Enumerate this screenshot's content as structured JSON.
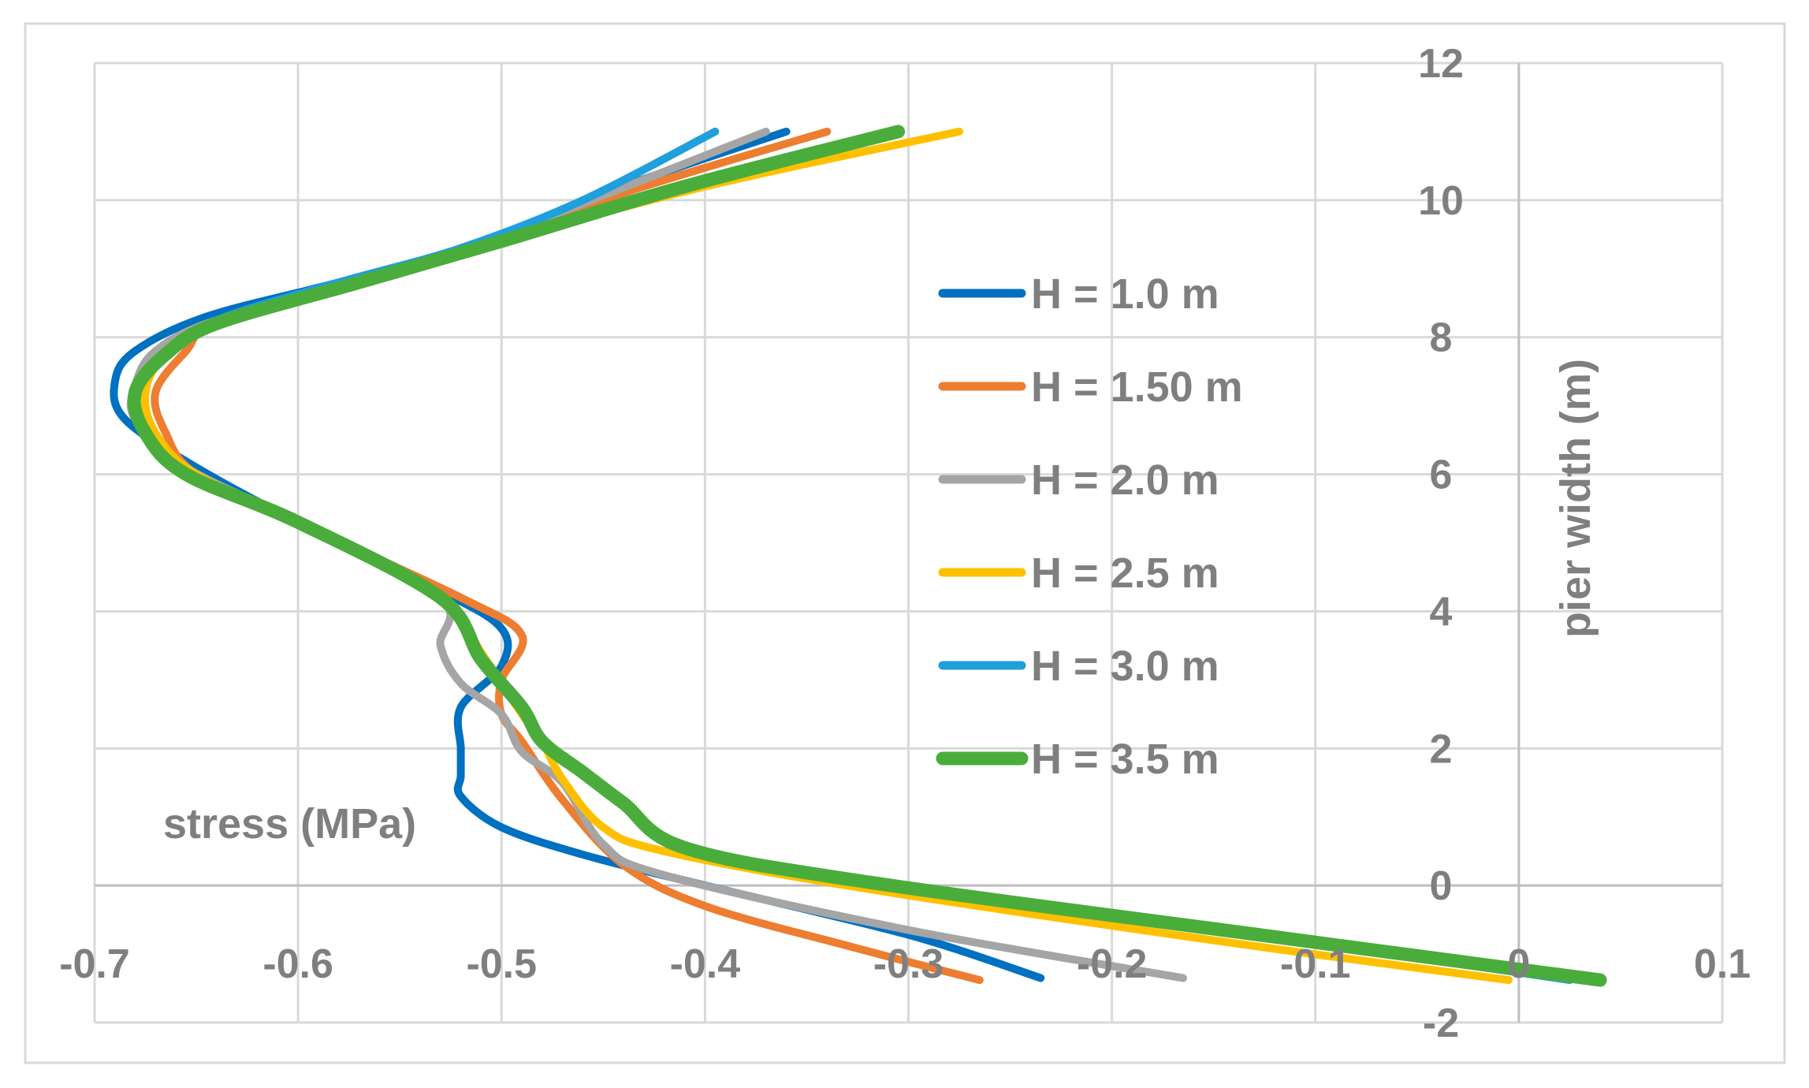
{
  "chart_data": {
    "type": "line",
    "title": "",
    "xlabel": "stress (MPa)",
    "ylabel": "pier width (m)",
    "xlim": [
      -0.7,
      0.1
    ],
    "ylim": [
      -2,
      12
    ],
    "x_ticks": [
      "-0.7",
      "-0.6",
      "-0.5",
      "-0.4",
      "-0.3",
      "-0.2",
      "-0.1",
      "0",
      "0.1"
    ],
    "y_ticks": [
      "-2",
      "0",
      "2",
      "4",
      "6",
      "8",
      "10",
      "12"
    ],
    "grid": true,
    "legend_position": "right",
    "series": [
      {
        "name": "H = 1.0 m",
        "color": "#0070c0",
        "points": [
          [
            -0.235,
            -1.35
          ],
          [
            -0.3,
            -0.72
          ],
          [
            -0.4,
            0.0
          ],
          [
            -0.46,
            0.45
          ],
          [
            -0.5,
            0.85
          ],
          [
            -0.52,
            1.3
          ],
          [
            -0.52,
            1.6
          ],
          [
            -0.52,
            2.0
          ],
          [
            -0.52,
            2.6
          ],
          [
            -0.5,
            3.2
          ],
          [
            -0.5,
            3.75
          ],
          [
            -0.53,
            4.3
          ],
          [
            -0.6,
            5.3
          ],
          [
            -0.65,
            6.1
          ],
          [
            -0.685,
            6.8
          ],
          [
            -0.69,
            7.35
          ],
          [
            -0.68,
            7.8
          ],
          [
            -0.645,
            8.3
          ],
          [
            -0.58,
            8.8
          ],
          [
            -0.5,
            9.45
          ],
          [
            -0.44,
            10.2
          ],
          [
            -0.36,
            11.0
          ]
        ]
      },
      {
        "name": "H = 1.50 m",
        "color": "#ed7d31",
        "points": [
          [
            -0.265,
            -1.38
          ],
          [
            -0.33,
            -0.88
          ],
          [
            -0.4,
            -0.3
          ],
          [
            -0.44,
            0.3
          ],
          [
            -0.47,
            1.25
          ],
          [
            -0.49,
            2.1
          ],
          [
            -0.5,
            2.5
          ],
          [
            -0.5,
            3.0
          ],
          [
            -0.49,
            3.65
          ],
          [
            -0.52,
            4.2
          ],
          [
            -0.6,
            5.3
          ],
          [
            -0.65,
            6.0
          ],
          [
            -0.665,
            6.6
          ],
          [
            -0.67,
            7.2
          ],
          [
            -0.655,
            7.8
          ],
          [
            -0.64,
            8.2
          ],
          [
            -0.57,
            8.8
          ],
          [
            -0.5,
            9.5
          ],
          [
            -0.43,
            10.2
          ],
          [
            -0.34,
            11.0
          ]
        ]
      },
      {
        "name": "H = 2.0 m",
        "color": "#a5a5a5",
        "points": [
          [
            -0.165,
            -1.35
          ],
          [
            -0.3,
            -0.65
          ],
          [
            -0.42,
            0.15
          ],
          [
            -0.45,
            0.6
          ],
          [
            -0.47,
            1.5
          ],
          [
            -0.49,
            1.95
          ],
          [
            -0.5,
            2.5
          ],
          [
            -0.52,
            2.95
          ],
          [
            -0.53,
            3.5
          ],
          [
            -0.53,
            4.2
          ],
          [
            -0.6,
            5.3
          ],
          [
            -0.655,
            6.1
          ],
          [
            -0.68,
            6.8
          ],
          [
            -0.68,
            7.3
          ],
          [
            -0.67,
            7.8
          ],
          [
            -0.64,
            8.25
          ],
          [
            -0.57,
            8.8
          ],
          [
            -0.5,
            9.5
          ],
          [
            -0.43,
            10.3
          ],
          [
            -0.37,
            11.0
          ]
        ]
      },
      {
        "name": "H = 2.5 m",
        "color": "#ffc000",
        "points": [
          [
            -0.005,
            -1.38
          ],
          [
            -0.15,
            -0.8
          ],
          [
            -0.32,
            -0.05
          ],
          [
            -0.42,
            0.5
          ],
          [
            -0.45,
            0.85
          ],
          [
            -0.47,
            1.55
          ],
          [
            -0.48,
            2.1
          ],
          [
            -0.49,
            2.5
          ],
          [
            -0.51,
            3.4
          ],
          [
            -0.53,
            4.2
          ],
          [
            -0.6,
            5.3
          ],
          [
            -0.65,
            6.0
          ],
          [
            -0.67,
            6.6
          ],
          [
            -0.675,
            7.2
          ],
          [
            -0.665,
            7.75
          ],
          [
            -0.64,
            8.2
          ],
          [
            -0.57,
            8.8
          ],
          [
            -0.5,
            9.4
          ],
          [
            -0.4,
            10.2
          ],
          [
            -0.275,
            11.0
          ]
        ]
      },
      {
        "name": "H = 3.0 m",
        "color": "#1f9fdc",
        "points": [
          [
            0.025,
            -1.38
          ],
          [
            -0.12,
            -0.75
          ],
          [
            -0.32,
            0.05
          ],
          [
            -0.41,
            0.55
          ],
          [
            -0.44,
            1.2
          ],
          [
            -0.46,
            1.65
          ],
          [
            -0.48,
            2.1
          ],
          [
            -0.49,
            2.6
          ],
          [
            -0.51,
            3.3
          ],
          [
            -0.53,
            4.2
          ],
          [
            -0.6,
            5.3
          ],
          [
            -0.655,
            6.0
          ],
          [
            -0.675,
            6.6
          ],
          [
            -0.68,
            7.2
          ],
          [
            -0.665,
            7.75
          ],
          [
            -0.64,
            8.25
          ],
          [
            -0.58,
            8.8
          ],
          [
            -0.52,
            9.3
          ],
          [
            -0.46,
            10.0
          ],
          [
            -0.395,
            11.0
          ]
        ]
      },
      {
        "name": "H = 3.5 m",
        "color": "#4aad3b",
        "points": [
          [
            0.04,
            -1.38
          ],
          [
            -0.12,
            -0.75
          ],
          [
            -0.32,
            0.05
          ],
          [
            -0.41,
            0.55
          ],
          [
            -0.44,
            1.2
          ],
          [
            -0.46,
            1.65
          ],
          [
            -0.48,
            2.1
          ],
          [
            -0.49,
            2.6
          ],
          [
            -0.51,
            3.3
          ],
          [
            -0.53,
            4.2
          ],
          [
            -0.6,
            5.3
          ],
          [
            -0.655,
            6.0
          ],
          [
            -0.675,
            6.6
          ],
          [
            -0.68,
            7.2
          ],
          [
            -0.665,
            7.75
          ],
          [
            -0.64,
            8.2
          ],
          [
            -0.57,
            8.8
          ],
          [
            -0.5,
            9.4
          ],
          [
            -0.41,
            10.2
          ],
          [
            -0.305,
            11.0
          ]
        ]
      }
    ]
  }
}
